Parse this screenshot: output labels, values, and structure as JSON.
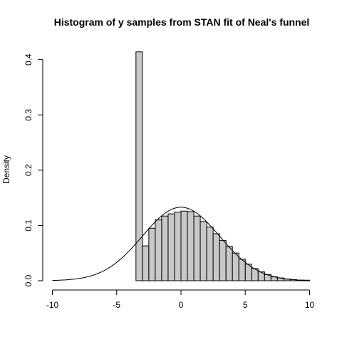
{
  "chart_data": {
    "type": "bar",
    "title": "Histogram of y samples from STAN fit of Neal's funnel",
    "xlabel": "",
    "ylabel": "Density",
    "xlim": [
      -10.5,
      10.8
    ],
    "ylim": [
      0,
      0.415
    ],
    "xticks": [
      -10,
      -5,
      0,
      5,
      10
    ],
    "xtick_labels": [
      "-10",
      "-5",
      "0",
      "5",
      "10"
    ],
    "yticks": [
      0.0,
      0.1,
      0.2,
      0.3,
      0.4
    ],
    "ytick_labels": [
      "0.0",
      "0.1",
      "0.2",
      "0.3",
      "0.4"
    ],
    "grid": false,
    "bin_width": 0.5,
    "bin_start": -3.5,
    "densities": [
      0.414,
      0.063,
      0.095,
      0.11,
      0.117,
      0.121,
      0.124,
      0.126,
      0.125,
      0.117,
      0.107,
      0.097,
      0.085,
      0.073,
      0.062,
      0.05,
      0.039,
      0.03,
      0.022,
      0.016,
      0.011,
      0.007,
      0.005,
      0.003,
      0.002,
      0.001,
      0.001,
      0.0
    ],
    "curve": {
      "type": "normal",
      "mean": 0,
      "sd": 3,
      "x_range": [
        -10,
        10
      ]
    }
  }
}
